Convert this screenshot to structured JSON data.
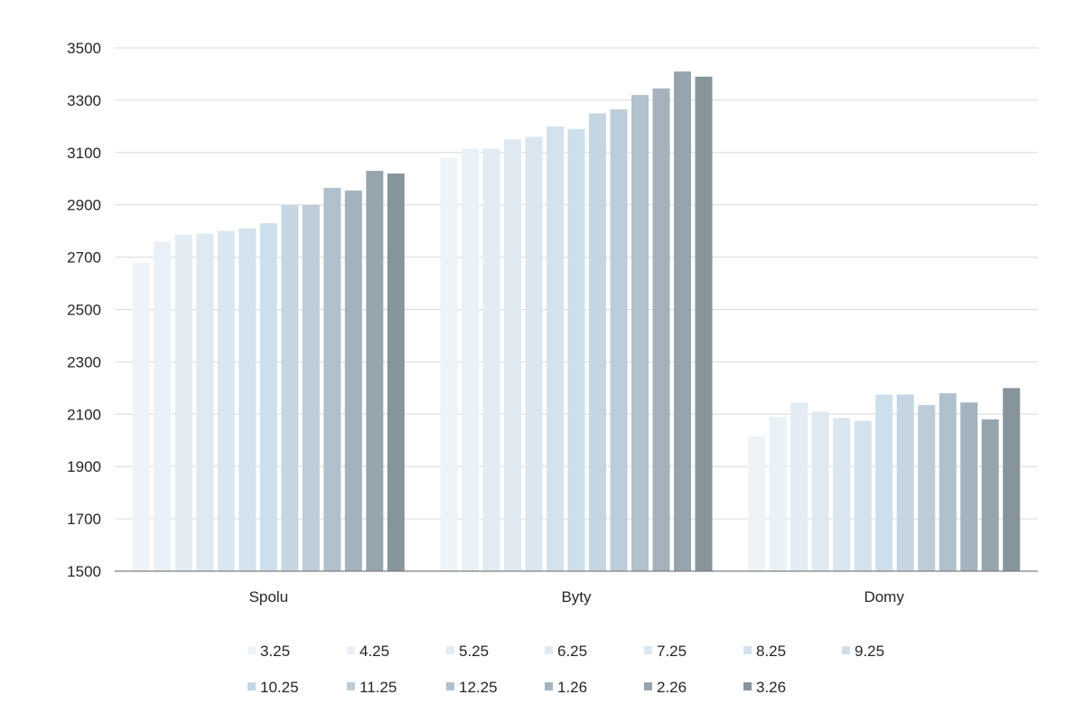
{
  "chart_data": {
    "type": "bar",
    "title": "",
    "xlabel": "",
    "ylabel": "",
    "ylim": [
      1500,
      3500
    ],
    "yticks": [
      1500,
      1700,
      1900,
      2100,
      2300,
      2500,
      2700,
      2900,
      3100,
      3300,
      3500
    ],
    "grid": true,
    "legend_position": "bottom",
    "categories": [
      "Spolu",
      "Byty",
      "Domy"
    ],
    "series": [
      {
        "name": "3.25",
        "color": "#eef3f7",
        "values": [
          2680,
          3080,
          2015
        ]
      },
      {
        "name": "4.25",
        "color": "#e9f0f6",
        "values": [
          2760,
          3115,
          2090
        ]
      },
      {
        "name": "5.25",
        "color": "#e3ecf3",
        "values": [
          2785,
          3115,
          2145
        ]
      },
      {
        "name": "6.25",
        "color": "#dfe9f2",
        "values": [
          2790,
          3150,
          2110
        ]
      },
      {
        "name": "7.25",
        "color": "#dae6f0",
        "values": [
          2800,
          3160,
          2085
        ]
      },
      {
        "name": "8.25",
        "color": "#d3e2ee",
        "values": [
          2810,
          3200,
          2075
        ]
      },
      {
        "name": "9.25",
        "color": "#cddfec",
        "values": [
          2830,
          3190,
          2175
        ]
      },
      {
        "name": "10.25",
        "color": "#c5d6e2",
        "values": [
          2900,
          3250,
          2175
        ]
      },
      {
        "name": "11.25",
        "color": "#bccdd9",
        "values": [
          2900,
          3265,
          2135
        ]
      },
      {
        "name": "12.25",
        "color": "#b0c1cd",
        "values": [
          2965,
          3320,
          2180
        ]
      },
      {
        "name": "1.26",
        "color": "#a3b2bd",
        "values": [
          2955,
          3345,
          2145
        ]
      },
      {
        "name": "2.26",
        "color": "#96a4ae",
        "values": [
          3030,
          3410,
          2080
        ]
      },
      {
        "name": "3.26",
        "color": "#87949c",
        "values": [
          3020,
          3390,
          2200
        ]
      }
    ]
  }
}
